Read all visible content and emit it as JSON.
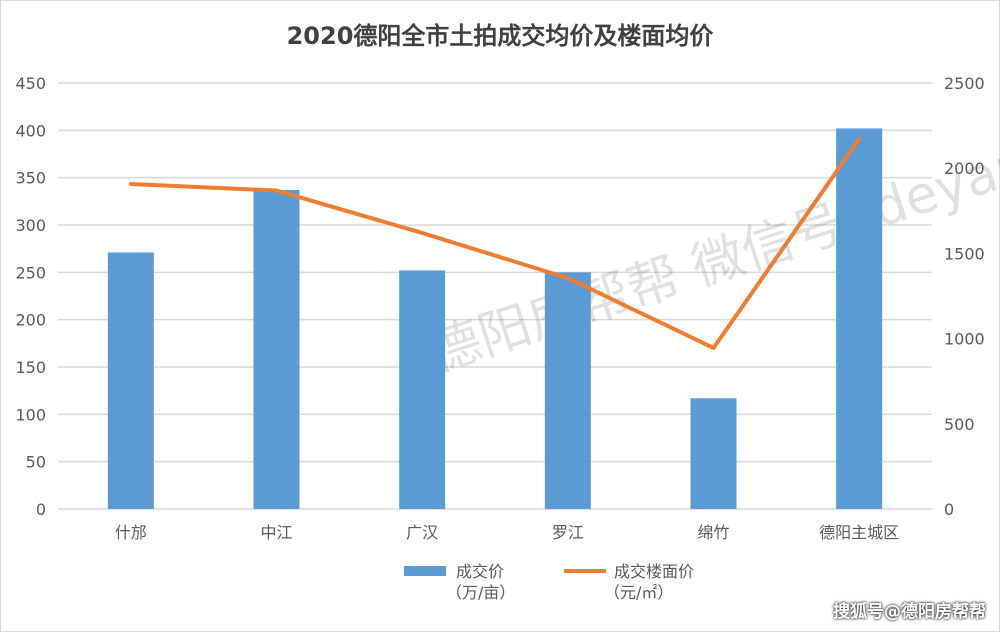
{
  "chart_data": {
    "type": "bar+line",
    "title": "2020德阳全市土拍成交均价及楼面均价",
    "categories": [
      "什邡",
      "中江",
      "广汉",
      "罗江",
      "绵竹",
      "德阳主城区"
    ],
    "series": [
      {
        "name": "成交价",
        "unit": "（万/亩）",
        "type": "bar",
        "axis": "left",
        "color": "#5B9BD5",
        "values": [
          271,
          337,
          252,
          250,
          117,
          402
        ]
      },
      {
        "name": "成交楼面价",
        "unit": "（元/㎡）",
        "type": "line",
        "axis": "right",
        "color": "#ED7D31",
        "values": [
          1907,
          1869,
          1620,
          1355,
          945,
          2171
        ]
      }
    ],
    "left_axis": {
      "ylim": [
        0,
        450
      ],
      "ticks": [
        "0",
        "50",
        "100",
        "150",
        "200",
        "250",
        "300",
        "350",
        "400",
        "450"
      ]
    },
    "right_axis": {
      "ylim": [
        0,
        2500
      ],
      "ticks": [
        "0",
        "500",
        "1000",
        "1500",
        "2000",
        "2500"
      ]
    },
    "grid": true,
    "legend": "bottom"
  },
  "watermark": "德阳房帮帮 微信号: deyangfbb",
  "credit": "搜狐号@德阳房帮帮"
}
